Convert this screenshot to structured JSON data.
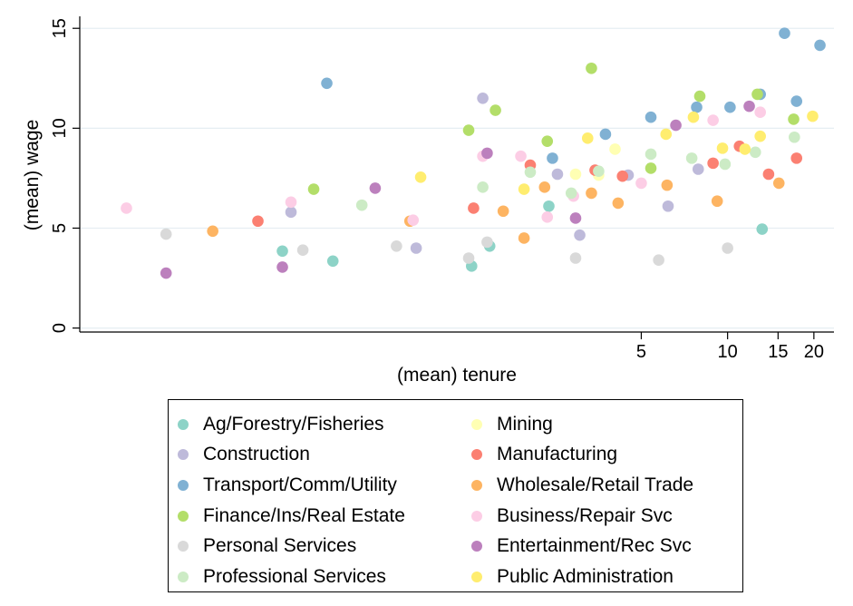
{
  "chart_data": {
    "type": "scatter",
    "title": "",
    "xlabel": "(mean) tenure",
    "ylabel": "(mean) wage",
    "xscale": "log",
    "xticks": [
      5,
      10,
      15,
      20
    ],
    "xtick_labels": [
      "5",
      "10",
      "15",
      "20"
    ],
    "yticks": [
      0,
      5,
      10,
      15
    ],
    "ytick_labels": [
      "0",
      "5",
      "10",
      "15"
    ],
    "xlim": [
      0.055,
      23.5
    ],
    "ylim": [
      -0.2,
      15.6
    ],
    "grid": "horizontal",
    "legend_position": "bottom",
    "legend_columns": 2,
    "series": [
      {
        "name": "Ag/Forestry/Fisheries",
        "color": "#8dd3c7",
        "points": [
          [
            0.28,
            3.85
          ],
          [
            0.42,
            3.35
          ],
          [
            1.28,
            3.1
          ],
          [
            1.48,
            4.1
          ],
          [
            2.38,
            6.1
          ],
          [
            13.2,
            4.95
          ]
        ]
      },
      {
        "name": "Mining",
        "color": "#ffffb3",
        "points": [
          [
            2.95,
            7.7
          ],
          [
            3.55,
            7.65
          ],
          [
            4.05,
            8.95
          ]
        ]
      },
      {
        "name": "Construction",
        "color": "#bebada",
        "points": [
          [
            0.3,
            5.8
          ],
          [
            0.82,
            4.0
          ],
          [
            1.4,
            11.5
          ],
          [
            2.55,
            7.7
          ],
          [
            3.05,
            4.65
          ],
          [
            4.5,
            7.65
          ],
          [
            6.2,
            6.1
          ],
          [
            7.9,
            7.95
          ]
        ]
      },
      {
        "name": "Manufacturing",
        "color": "#fb8072",
        "points": [
          [
            0.23,
            5.35
          ],
          [
            1.3,
            6.0
          ],
          [
            2.05,
            8.15
          ],
          [
            3.45,
            7.9
          ],
          [
            4.3,
            7.6
          ],
          [
            8.9,
            8.25
          ],
          [
            11.0,
            9.1
          ],
          [
            13.9,
            7.7
          ],
          [
            17.4,
            8.5
          ]
        ]
      },
      {
        "name": "Transport/Comm/Utility",
        "color": "#80b1d3",
        "points": [
          [
            0.4,
            12.25
          ],
          [
            2.45,
            8.5
          ],
          [
            3.75,
            9.7
          ],
          [
            5.4,
            10.55
          ],
          [
            7.8,
            11.05
          ],
          [
            10.2,
            11.05
          ],
          [
            13.0,
            11.7
          ],
          [
            15.8,
            14.75
          ],
          [
            17.4,
            11.35
          ],
          [
            21.0,
            14.15
          ]
        ]
      },
      {
        "name": "Wholesale/Retail Trade",
        "color": "#fdb462",
        "points": [
          [
            0.16,
            4.85
          ],
          [
            0.78,
            5.35
          ],
          [
            1.65,
            5.85
          ],
          [
            1.95,
            4.5
          ],
          [
            2.3,
            7.05
          ],
          [
            3.35,
            6.75
          ],
          [
            4.15,
            6.25
          ],
          [
            6.15,
            7.15
          ],
          [
            9.2,
            6.35
          ],
          [
            15.1,
            7.25
          ]
        ]
      },
      {
        "name": "Finance/Ins/Real Estate",
        "color": "#b3de69",
        "points": [
          [
            0.36,
            6.95
          ],
          [
            1.25,
            9.9
          ],
          [
            1.55,
            10.9
          ],
          [
            2.35,
            9.35
          ],
          [
            3.35,
            13.0
          ],
          [
            5.4,
            8.0
          ],
          [
            8.0,
            11.6
          ],
          [
            12.7,
            11.7
          ],
          [
            17.0,
            10.45
          ]
        ]
      },
      {
        "name": "Business/Repair Svc",
        "color": "#fccde5",
        "points": [
          [
            0.08,
            6.0
          ],
          [
            0.3,
            6.3
          ],
          [
            0.8,
            5.4
          ],
          [
            1.4,
            8.6
          ],
          [
            1.9,
            8.6
          ],
          [
            2.35,
            5.55
          ],
          [
            2.9,
            6.6
          ],
          [
            5.0,
            7.25
          ],
          [
            8.9,
            10.4
          ],
          [
            13.0,
            10.8
          ]
        ]
      },
      {
        "name": "Personal Services",
        "color": "#d9d9d9",
        "points": [
          [
            0.11,
            4.7
          ],
          [
            0.33,
            3.9
          ],
          [
            0.7,
            4.1
          ],
          [
            1.25,
            3.5
          ],
          [
            1.45,
            4.3
          ],
          [
            2.95,
            3.5
          ],
          [
            5.75,
            3.4
          ],
          [
            10.0,
            4.0
          ]
        ]
      },
      {
        "name": "Entertainment/Rec Svc",
        "color": "#bc80bd",
        "points": [
          [
            0.11,
            2.75
          ],
          [
            0.28,
            3.05
          ],
          [
            0.59,
            7.0
          ],
          [
            1.45,
            8.75
          ],
          [
            2.95,
            5.5
          ],
          [
            6.6,
            10.15
          ],
          [
            11.9,
            11.1
          ]
        ]
      },
      {
        "name": "Professional Services",
        "color": "#ccebc5",
        "points": [
          [
            0.53,
            6.15
          ],
          [
            1.4,
            7.05
          ],
          [
            2.05,
            7.8
          ],
          [
            2.85,
            6.75
          ],
          [
            3.55,
            7.85
          ],
          [
            5.4,
            8.7
          ],
          [
            7.5,
            8.5
          ],
          [
            9.8,
            8.2
          ],
          [
            12.5,
            8.8
          ],
          [
            17.1,
            9.55
          ]
        ]
      },
      {
        "name": "Public Administration",
        "color": "#ffed6f",
        "points": [
          [
            0.85,
            7.55
          ],
          [
            1.95,
            6.95
          ],
          [
            3.25,
            9.5
          ],
          [
            6.1,
            9.7
          ],
          [
            7.6,
            10.55
          ],
          [
            9.6,
            9.0
          ],
          [
            11.5,
            8.95
          ],
          [
            13.0,
            9.6
          ],
          [
            19.8,
            10.6
          ]
        ]
      }
    ]
  },
  "legend": {
    "order": [
      "Ag/Forestry/Fisheries",
      "Mining",
      "Construction",
      "Manufacturing",
      "Transport/Comm/Utility",
      "Wholesale/Retail Trade",
      "Finance/Ins/Real Estate",
      "Business/Repair Svc",
      "Personal Services",
      "Entertainment/Rec Svc",
      "Professional Services",
      "Public Administration"
    ]
  }
}
